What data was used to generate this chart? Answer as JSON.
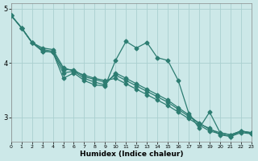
{
  "xlabel": "Humidex (Indice chaleur)",
  "bg_color": "#cce8e8",
  "line_color": "#2d7d72",
  "grid_color": "#aad0d0",
  "xlim": [
    0,
    23
  ],
  "ylim": [
    2.55,
    5.1
  ],
  "yticks": [
    3,
    4,
    5
  ],
  "xticks": [
    0,
    1,
    2,
    3,
    4,
    5,
    6,
    7,
    8,
    9,
    10,
    11,
    12,
    13,
    14,
    15,
    16,
    17,
    18,
    19,
    20,
    21,
    22,
    23
  ],
  "series": [
    [
      4.88,
      4.65,
      4.38,
      4.22,
      4.2,
      3.72,
      3.82,
      3.68,
      3.6,
      3.58,
      4.05,
      4.4,
      4.28,
      4.38,
      4.1,
      4.05,
      3.68,
      3.08,
      2.8,
      3.1,
      2.72,
      2.68,
      2.75,
      2.72
    ],
    [
      4.88,
      4.65,
      4.38,
      4.25,
      4.22,
      3.88,
      3.88,
      3.75,
      3.7,
      3.65,
      3.78,
      3.68,
      3.58,
      3.48,
      3.38,
      3.28,
      3.15,
      3.02,
      2.9,
      2.78,
      2.72,
      2.68,
      2.75,
      2.72
    ],
    [
      4.88,
      4.65,
      4.38,
      4.28,
      4.25,
      3.92,
      3.85,
      3.78,
      3.72,
      3.68,
      3.72,
      3.62,
      3.52,
      3.42,
      3.32,
      3.22,
      3.1,
      2.98,
      2.86,
      2.75,
      2.7,
      2.65,
      2.72,
      2.7
    ],
    [
      4.88,
      4.65,
      4.38,
      4.22,
      4.2,
      3.82,
      3.85,
      3.72,
      3.65,
      3.6,
      3.82,
      3.72,
      3.62,
      3.52,
      3.42,
      3.32,
      3.18,
      3.05,
      2.88,
      2.8,
      2.68,
      2.65,
      2.75,
      2.7
    ]
  ],
  "marker": "D",
  "markersize": 2.5,
  "linewidth": 0.9
}
